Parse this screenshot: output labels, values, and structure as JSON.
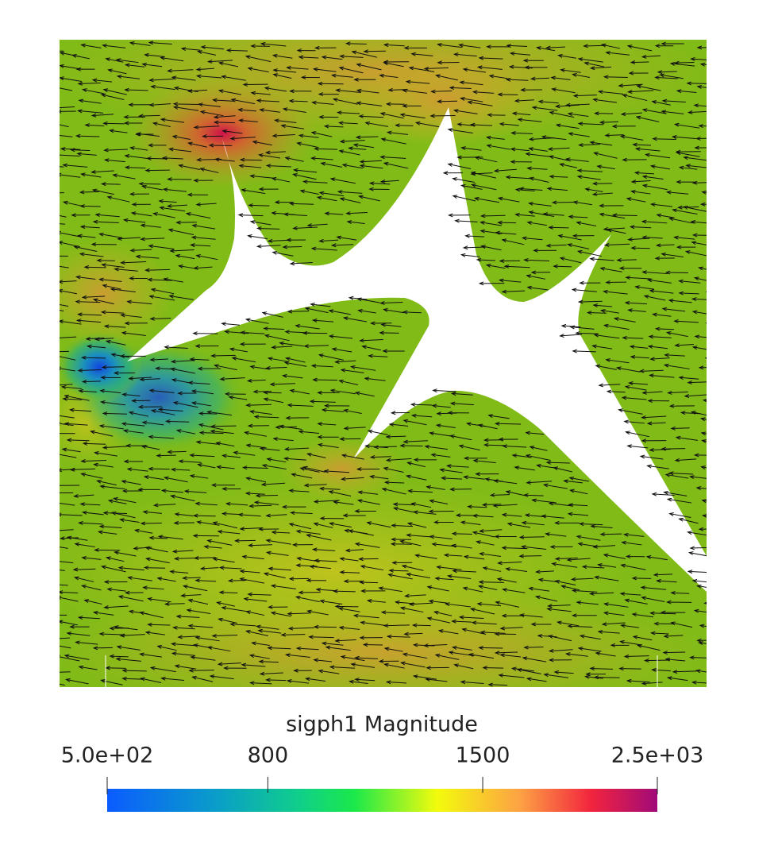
{
  "colorbar": {
    "title": "sigph1 Magnitude",
    "scale": "log",
    "range": [
      {
        "value": 500,
        "label": "5.0e+02"
      },
      {
        "value": 2500,
        "label": "2.5e+03"
      }
    ],
    "ticks": [
      800,
      1500
    ]
  }
}
